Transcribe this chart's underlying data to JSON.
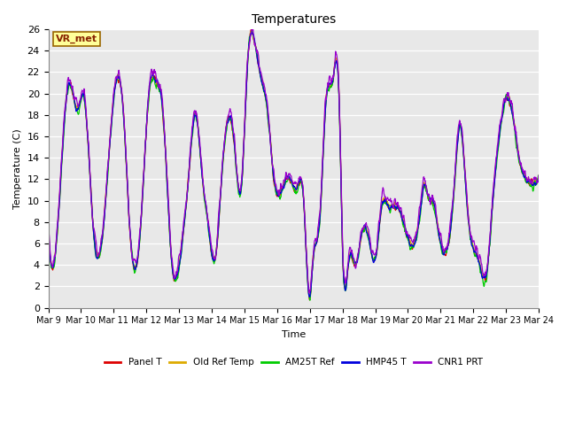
{
  "title": "Temperatures",
  "xlabel": "Time",
  "ylabel": "Temperature (C)",
  "ylim": [
    0,
    26
  ],
  "yticks": [
    0,
    2,
    4,
    6,
    8,
    10,
    12,
    14,
    16,
    18,
    20,
    22,
    24,
    26
  ],
  "series_colors": {
    "Panel T": "#dd0000",
    "Old Ref Temp": "#ddaa00",
    "AM25T Ref": "#00cc00",
    "HMP45 T": "#0000dd",
    "CNR1 PRT": "#9900cc"
  },
  "series_order": [
    "Panel T",
    "Old Ref Temp",
    "AM25T Ref",
    "HMP45 T",
    "CNR1 PRT"
  ],
  "bg_color": "#e8e8e8",
  "fig_bg_color": "#ffffff",
  "label_box_facecolor": "#ffff99",
  "label_box_edgecolor": "#996600",
  "label_text": "VR_met",
  "linewidth": 0.9,
  "xtick_labels": [
    "Mar 9",
    "Mar 10",
    "Mar 11",
    "Mar 12",
    "Mar 13",
    "Mar 14",
    "Mar 15",
    "Mar 16",
    "Mar 17",
    "Mar 18",
    "Mar 19",
    "Mar 20",
    "Mar 21",
    "Mar 22",
    "Mar 23",
    "Mar 24"
  ]
}
